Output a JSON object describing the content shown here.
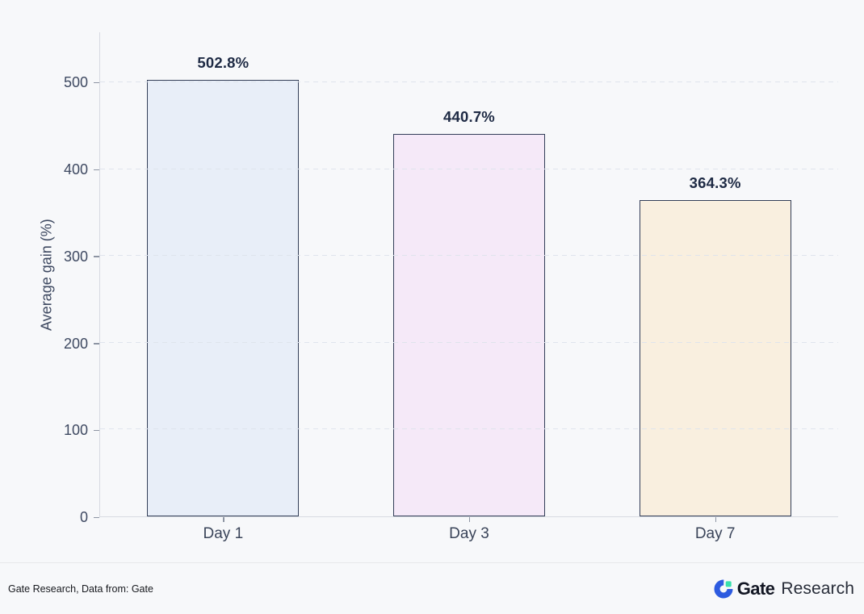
{
  "chart_data": {
    "type": "bar",
    "categories": [
      "Day 1",
      "Day 3",
      "Day 7"
    ],
    "values": [
      502.8,
      440.7,
      364.3
    ],
    "value_labels": [
      "502.8%",
      "440.7%",
      "364.3%"
    ],
    "title": "",
    "xlabel": "",
    "ylabel": "Average gain (%)",
    "ylim": [
      0,
      558
    ],
    "yticks": [
      0,
      100,
      200,
      300,
      400,
      500
    ],
    "grid": "horizontal-dashed",
    "legend_position": "none",
    "bar_colors": [
      "#e8eef8",
      "#f5e9f8",
      "#f9efdf"
    ],
    "bar_border_color": "#333e58",
    "value_label_color": "#1e2a44",
    "background_color": "#f7f8fa"
  },
  "footer": {
    "source_text": "Gate Research, Data from: Gate",
    "logo": {
      "brand_bold": "Gate",
      "brand_regular": "Research",
      "icon_blue": "#2d5be0",
      "icon_green": "#38e0ad"
    }
  }
}
